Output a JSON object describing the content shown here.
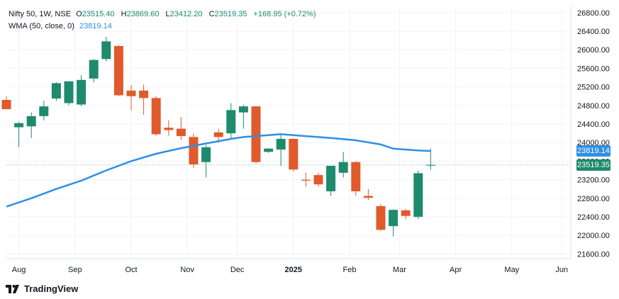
{
  "legend": {
    "symbol": "Nifty 50, 1W, NSE",
    "open_label": "O",
    "open": "23515.40",
    "high_label": "H",
    "high": "23869.60",
    "low_label": "L",
    "low": "23412.20",
    "close_label": "C",
    "close": "23519.35",
    "change": "+168.95 (+0.72%)",
    "indicator": "WMA (50, close, 0)",
    "indicator_value": "23819.14"
  },
  "price_tags": {
    "wma": "23819.14",
    "last": "23519.35"
  },
  "brand": "TradingView",
  "colors": {
    "up": "#1e8a6e",
    "down": "#e05a2b",
    "wma": "#2f8fe3",
    "last_tag": "#1e8a6e",
    "wma_tag": "#2f8fe3"
  },
  "chart_data": {
    "type": "candlestick",
    "ylim": [
      21500,
      26950
    ],
    "y_ticks": [
      21600,
      22000,
      22400,
      22800,
      23200,
      23600,
      24000,
      24400,
      24800,
      25200,
      25600,
      26000,
      26400,
      26800
    ],
    "x_labels": [
      "Aug",
      "Sep",
      "Oct",
      "Nov",
      "Dec",
      "2025",
      "Feb",
      "Mar",
      "Apr",
      "May",
      "Jun"
    ],
    "x_label_weeks": [
      1,
      5.5,
      10,
      14.5,
      18.5,
      23,
      27.5,
      31.5,
      36,
      40.5,
      44.5
    ],
    "candles": [
      {
        "w": 0,
        "o": 24920,
        "h": 25000,
        "l": 24720,
        "c": 24720
      },
      {
        "w": 1,
        "o": 24330,
        "h": 24450,
        "l": 23900,
        "c": 24420
      },
      {
        "w": 2,
        "o": 24350,
        "h": 24650,
        "l": 24100,
        "c": 24570
      },
      {
        "w": 3,
        "o": 24570,
        "h": 24900,
        "l": 24480,
        "c": 24780
      },
      {
        "w": 4,
        "o": 24950,
        "h": 25300,
        "l": 24900,
        "c": 25280
      },
      {
        "w": 5,
        "o": 24850,
        "h": 25320,
        "l": 24800,
        "c": 25320
      },
      {
        "w": 6,
        "o": 24820,
        "h": 25450,
        "l": 24780,
        "c": 25350
      },
      {
        "w": 7,
        "o": 25380,
        "h": 25800,
        "l": 25300,
        "c": 25780
      },
      {
        "w": 8,
        "o": 25800,
        "h": 26280,
        "l": 25750,
        "c": 26180
      },
      {
        "w": 9,
        "o": 26080,
        "h": 26100,
        "l": 25000,
        "c": 25020
      },
      {
        "w": 10,
        "o": 25120,
        "h": 25240,
        "l": 24700,
        "c": 25000
      },
      {
        "w": 11,
        "o": 25120,
        "h": 25250,
        "l": 24600,
        "c": 24960
      },
      {
        "w": 12,
        "o": 24960,
        "h": 25000,
        "l": 24150,
        "c": 24180
      },
      {
        "w": 13,
        "o": 24320,
        "h": 24480,
        "l": 24150,
        "c": 24270
      },
      {
        "w": 14,
        "o": 24300,
        "h": 24550,
        "l": 24050,
        "c": 24140
      },
      {
        "w": 15,
        "o": 24120,
        "h": 24200,
        "l": 23450,
        "c": 23530
      },
      {
        "w": 16,
        "o": 23580,
        "h": 23950,
        "l": 23250,
        "c": 23900
      },
      {
        "w": 17,
        "o": 24220,
        "h": 24300,
        "l": 24000,
        "c": 24120
      },
      {
        "w": 18,
        "o": 24200,
        "h": 24850,
        "l": 24080,
        "c": 24700
      },
      {
        "w": 19,
        "o": 24650,
        "h": 24820,
        "l": 24300,
        "c": 24780
      },
      {
        "w": 20,
        "o": 24780,
        "h": 24780,
        "l": 23550,
        "c": 23580
      },
      {
        "w": 21,
        "o": 23800,
        "h": 23880,
        "l": 23780,
        "c": 23870
      },
      {
        "w": 22,
        "o": 23850,
        "h": 24200,
        "l": 23500,
        "c": 24080
      },
      {
        "w": 23,
        "o": 24080,
        "h": 24090,
        "l": 23380,
        "c": 23420
      },
      {
        "w": 24,
        "o": 23200,
        "h": 23350,
        "l": 23050,
        "c": 23180
      },
      {
        "w": 25,
        "o": 23300,
        "h": 23350,
        "l": 23050,
        "c": 23100
      },
      {
        "w": 26,
        "o": 22950,
        "h": 23500,
        "l": 22850,
        "c": 23500
      },
      {
        "w": 27,
        "o": 23350,
        "h": 23800,
        "l": 23250,
        "c": 23580
      },
      {
        "w": 28,
        "o": 23580,
        "h": 23600,
        "l": 22850,
        "c": 22950
      },
      {
        "w": 29,
        "o": 22850,
        "h": 23000,
        "l": 22760,
        "c": 22810
      },
      {
        "w": 30,
        "o": 22630,
        "h": 22680,
        "l": 22100,
        "c": 22120
      },
      {
        "w": 31,
        "o": 22200,
        "h": 22560,
        "l": 21980,
        "c": 22550
      },
      {
        "w": 32,
        "o": 22540,
        "h": 22570,
        "l": 22350,
        "c": 22420
      },
      {
        "w": 33,
        "o": 22400,
        "h": 23400,
        "l": 22350,
        "c": 23340
      },
      {
        "w": 34,
        "o": 23515,
        "h": 23870,
        "l": 23412,
        "c": 23519
      }
    ],
    "wma": [
      [
        0,
        22620
      ],
      [
        2,
        22800
      ],
      [
        4,
        23000
      ],
      [
        6,
        23180
      ],
      [
        8,
        23400
      ],
      [
        10,
        23600
      ],
      [
        12,
        23760
      ],
      [
        14,
        23880
      ],
      [
        16,
        23980
      ],
      [
        18,
        24080
      ],
      [
        19,
        24120
      ],
      [
        20,
        24140
      ],
      [
        22,
        24180
      ],
      [
        24,
        24140
      ],
      [
        26,
        24100
      ],
      [
        28,
        24050
      ],
      [
        30,
        23960
      ],
      [
        31,
        23870
      ],
      [
        33,
        23830
      ],
      [
        34,
        23819
      ]
    ]
  }
}
